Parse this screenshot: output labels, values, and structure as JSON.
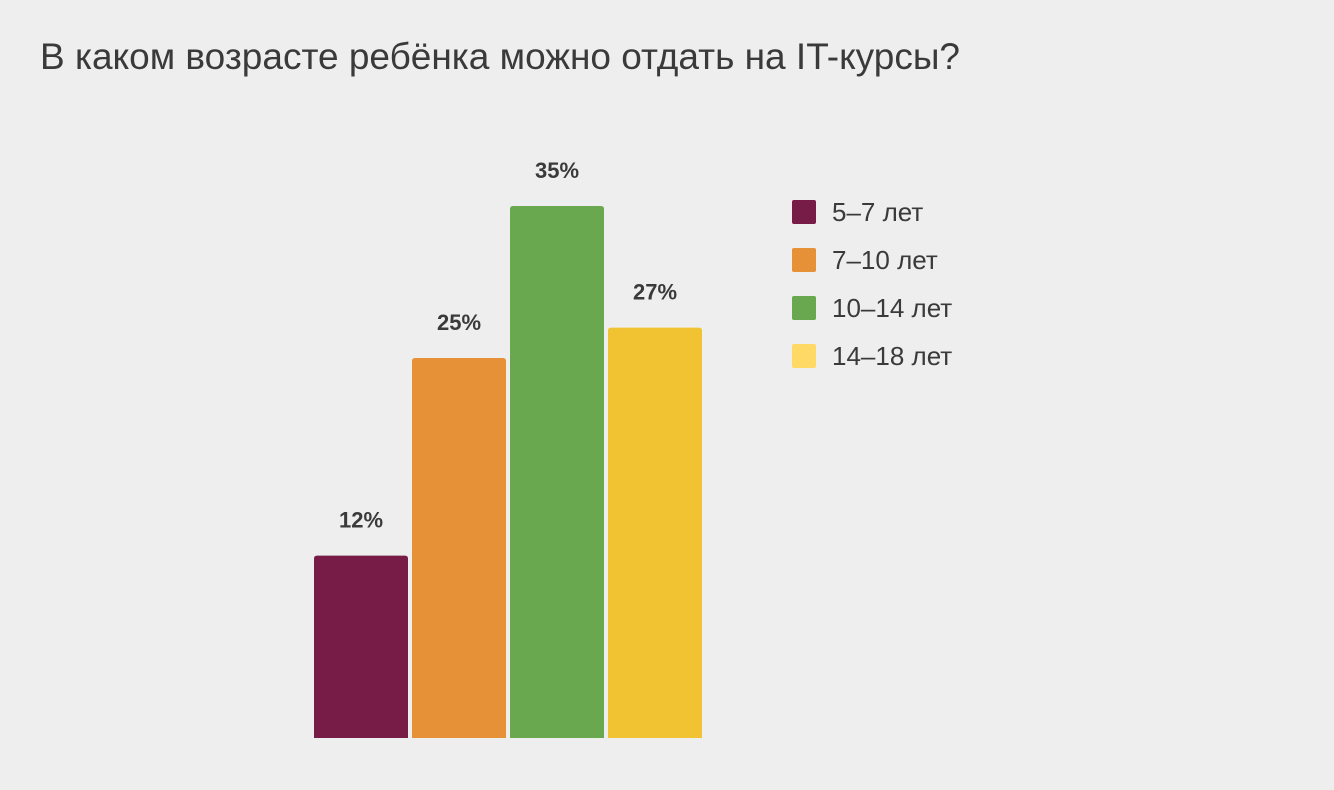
{
  "chart_data": {
    "type": "bar",
    "title": "В каком возрасте ребёнка можно отдать на IT-курсы?",
    "categories": [
      "5–7 лет",
      "7–10 лет",
      "10–14 лет",
      "14–18 лет"
    ],
    "values": [
      12,
      25,
      35,
      27
    ],
    "value_labels": [
      "12%",
      "25%",
      "35%",
      "27%"
    ],
    "colors": [
      "#761c46",
      "#e69138",
      "#6aa84f",
      "#f1c232"
    ],
    "legend_colors": [
      "#761c46",
      "#e69138",
      "#6aa84f",
      "#ffd966"
    ],
    "ylim": [
      0,
      35
    ],
    "xlabel": "",
    "ylabel": "",
    "grid": false,
    "legend": "right"
  }
}
